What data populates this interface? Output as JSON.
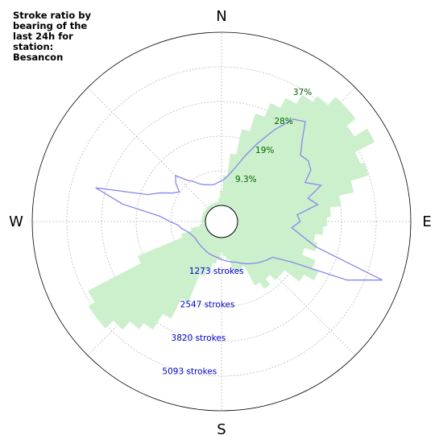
{
  "chart_data": {
    "type": "polar",
    "title": "Stroke ratio by\nbearing of the\nlast 24h for\nstation:\nBesancon",
    "directions": [
      "N",
      "E",
      "S",
      "W"
    ],
    "ratio_ticks": [
      "9.3%",
      "19%",
      "28%",
      "37%"
    ],
    "count_ticks": [
      "1273 strokes",
      "2547 strokes",
      "3820 strokes",
      "5093 strokes"
    ],
    "ratio_max": 46.5,
    "count_max": 6366,
    "bearing_step_deg": 5,
    "grid": true,
    "series": [
      {
        "kind": "ratio_percent",
        "color": "#ccefcc",
        "bearing_deg": [
          5,
          10,
          15,
          20,
          25,
          30,
          35,
          40,
          45,
          50,
          55,
          60,
          65,
          70,
          75,
          80,
          85,
          90,
          95,
          100,
          105,
          110,
          115,
          120,
          125,
          130,
          135,
          140,
          145,
          150,
          155,
          160,
          165,
          170,
          175,
          180,
          185,
          190,
          195,
          200,
          205,
          210,
          215,
          220,
          225,
          230,
          235,
          240,
          245,
          250,
          255,
          260,
          265,
          270,
          275,
          280,
          285,
          290,
          295,
          300,
          305,
          310,
          315,
          320,
          325,
          330,
          335,
          340,
          345,
          350,
          355,
          360
        ],
        "values": [
          8.0,
          14.0,
          21.0,
          26.0,
          30.0,
          33.0,
          36.0,
          38.0,
          41.0,
          41.0,
          38.0,
          42.0,
          36.0,
          37.0,
          32.0,
          28.0,
          25.0,
          24.0,
          23.0,
          21.0,
          22.0,
          19.0,
          23.0,
          25.0,
          22.0,
          17.0,
          17.0,
          15.0,
          17.0,
          15.0,
          9.0,
          10.0,
          9.0,
          6.0,
          5.0,
          4.0,
          6.0,
          7.0,
          9.0,
          11.0,
          19.0,
          25.0,
          30.0,
          32.0,
          35.0,
          38.0,
          38.0,
          36.0,
          20.0,
          7.0,
          4.0,
          1.5,
          1.0,
          1.0,
          1.0,
          1.0,
          1.0,
          1.0,
          1.0,
          1.0,
          1.0,
          1.0,
          1.0,
          1.0,
          1.0,
          1.0,
          1.0,
          1.0,
          1.0,
          1.0,
          2.0,
          4.0
        ]
      },
      {
        "kind": "stroke_count",
        "color": "#8888ee",
        "bearing_deg": [
          5,
          10,
          15,
          20,
          25,
          30,
          35,
          40,
          45,
          50,
          55,
          60,
          65,
          70,
          75,
          80,
          85,
          90,
          95,
          100,
          105,
          110,
          115,
          120,
          125,
          130,
          135,
          140,
          145,
          150,
          155,
          160,
          165,
          170,
          175,
          180,
          185,
          190,
          195,
          200,
          205,
          210,
          215,
          220,
          225,
          230,
          235,
          240,
          245,
          250,
          255,
          260,
          265,
          270,
          275,
          280,
          285,
          290,
          295,
          300,
          305,
          310,
          315,
          320,
          325,
          330,
          335,
          340,
          345,
          350,
          355,
          360
        ],
        "values": [
          1000,
          1200,
          1500,
          2000,
          2600,
          3300,
          4000,
          4200,
          3600,
          3200,
          3300,
          3200,
          2800,
          3300,
          2700,
          3000,
          2200,
          2300,
          2000,
          2400,
          3000,
          5700,
          4500,
          2400,
          1700,
          1600,
          1500,
          1400,
          1300,
          1200,
          1100,
          1000,
          950,
          900,
          850,
          800,
          750,
          720,
          700,
          680,
          650,
          620,
          600,
          580,
          570,
          560,
          550,
          560,
          600,
          650,
          750,
          900,
          1000,
          1300,
          1700,
          3100,
          4200,
          2300,
          1900,
          1500,
          1300,
          1600,
          1800,
          1400,
          1200,
          1000,
          900,
          850,
          800,
          800,
          850,
          900
        ]
      }
    ]
  }
}
